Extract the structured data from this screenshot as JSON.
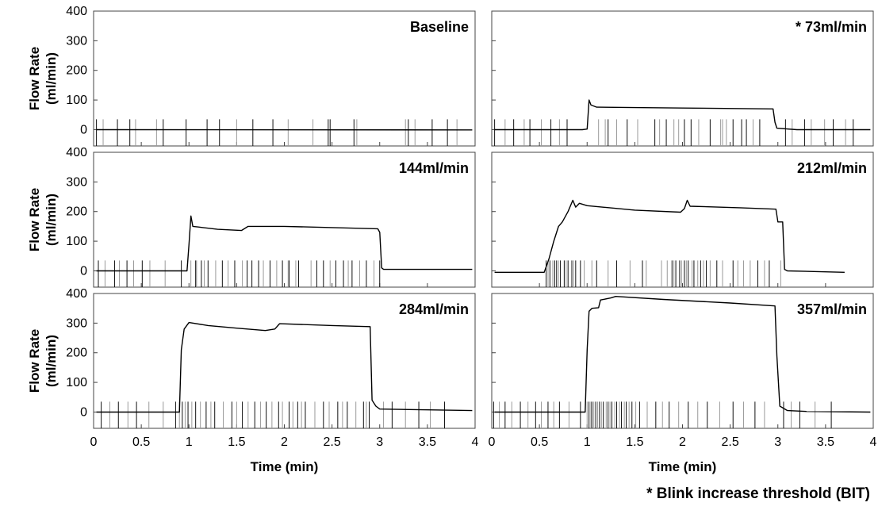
{
  "chart_data": {
    "type": "line",
    "layout": "3x2 grid of panels",
    "ylabel": "Flow Rate\n(ml/min)",
    "xlabel": "Time (min)",
    "ylim": [
      -55,
      400
    ],
    "yticks": [
      0,
      100,
      200,
      300,
      400
    ],
    "xlim": [
      0,
      4
    ],
    "xticks": [
      0,
      0.5,
      1,
      1.5,
      2,
      2.5,
      3,
      3.5,
      4
    ],
    "xtick_labels": [
      "0",
      "0.5",
      "1",
      "1.5",
      "2",
      "2.5",
      "3",
      "3.5",
      "4"
    ],
    "grid": false,
    "blink_marker_range": [
      -55,
      35
    ],
    "footnote": "* Blink increase threshold (BIT)",
    "panels": [
      {
        "title": "Baseline",
        "flow": [
          [
            0.03,
            0
          ],
          [
            3.97,
            -1
          ]
        ],
        "blinks_dark": [
          0.03,
          0.25,
          0.38,
          0.73,
          0.97,
          1.19,
          1.32,
          1.67,
          1.88,
          2.46,
          2.48,
          2.73,
          3.3,
          3.55,
          3.71
        ],
        "blinks_light": [
          0.1,
          0.44,
          0.66,
          1.5,
          2.04,
          2.3,
          2.76,
          3.27,
          3.37,
          3.81
        ]
      },
      {
        "title": "* 73ml/min",
        "flow": [
          [
            0.03,
            0
          ],
          [
            0.95,
            0
          ],
          [
            1.0,
            2
          ],
          [
            1.02,
            100
          ],
          [
            1.04,
            83
          ],
          [
            1.1,
            76
          ],
          [
            2.0,
            73
          ],
          [
            2.95,
            70
          ],
          [
            2.97,
            25
          ],
          [
            2.99,
            5
          ],
          [
            3.2,
            0
          ],
          [
            3.97,
            0
          ]
        ],
        "blinks_dark": [
          0.03,
          0.23,
          0.4,
          0.62,
          0.79,
          1.22,
          1.42,
          1.71,
          1.83,
          2.02,
          2.09,
          2.29,
          2.53,
          2.62,
          2.67,
          2.81,
          3.08,
          3.28,
          3.58,
          3.79
        ],
        "blinks_light": [
          0.14,
          0.34,
          0.52,
          0.71,
          1.12,
          1.19,
          1.31,
          1.53,
          1.76,
          1.91,
          1.96,
          2.17,
          2.4,
          2.42,
          2.46,
          2.74,
          3.15,
          3.35,
          3.49,
          3.71
        ]
      },
      {
        "title": "144ml/min",
        "flow": [
          [
            0.03,
            0
          ],
          [
            0.98,
            0
          ],
          [
            1.0,
            90
          ],
          [
            1.02,
            185
          ],
          [
            1.04,
            150
          ],
          [
            1.1,
            148
          ],
          [
            1.3,
            140
          ],
          [
            1.55,
            136
          ],
          [
            1.62,
            150
          ],
          [
            2.0,
            150
          ],
          [
            2.98,
            142
          ],
          [
            3.0,
            130
          ],
          [
            3.02,
            10
          ],
          [
            3.04,
            5
          ],
          [
            3.97,
            5
          ]
        ],
        "blinks_dark": [
          0.05,
          0.22,
          0.35,
          0.51,
          0.92,
          1.07,
          1.13,
          1.2,
          1.35,
          1.48,
          1.61,
          1.66,
          1.73,
          1.85,
          1.98,
          2.05,
          2.15,
          2.34,
          2.41,
          2.54,
          2.62,
          2.71,
          2.86,
          3.0
        ],
        "blinks_light": [
          0.12,
          0.27,
          0.42,
          0.59,
          0.75,
          1.02,
          1.08,
          1.16,
          1.28,
          1.41,
          1.56,
          1.78,
          1.92,
          2.04,
          2.12,
          2.28,
          2.48,
          2.67,
          2.79,
          2.94
        ]
      },
      {
        "title": "212ml/min",
        "flow": [
          [
            0.03,
            -5
          ],
          [
            0.55,
            -5
          ],
          [
            0.6,
            40
          ],
          [
            0.65,
            100
          ],
          [
            0.68,
            130
          ],
          [
            0.7,
            150
          ],
          [
            0.74,
            165
          ],
          [
            0.8,
            200
          ],
          [
            0.85,
            238
          ],
          [
            0.88,
            215
          ],
          [
            0.92,
            228
          ],
          [
            1.0,
            220
          ],
          [
            1.5,
            205
          ],
          [
            1.98,
            198
          ],
          [
            2.02,
            210
          ],
          [
            2.05,
            238
          ],
          [
            2.08,
            218
          ],
          [
            2.6,
            213
          ],
          [
            2.98,
            208
          ],
          [
            3.0,
            165
          ],
          [
            3.05,
            165
          ],
          [
            3.07,
            5
          ],
          [
            3.1,
            0
          ],
          [
            3.7,
            -5
          ]
        ],
        "blinks_dark": [
          0.57,
          0.61,
          0.66,
          0.68,
          0.72,
          0.76,
          0.8,
          0.84,
          0.88,
          0.93,
          1.1,
          1.31,
          1.58,
          1.89,
          1.93,
          1.97,
          2.02,
          2.06,
          2.12,
          2.19,
          2.25,
          2.36,
          2.53,
          2.79,
          2.91
        ],
        "blinks_light": [
          0.59,
          0.64,
          0.7,
          0.78,
          0.86,
          0.97,
          1.05,
          1.22,
          1.45,
          1.62,
          1.78,
          1.84,
          1.91,
          1.99,
          2.04,
          2.1,
          2.16,
          2.22,
          2.29,
          2.42,
          2.58,
          2.64,
          2.71,
          2.86,
          3.03
        ]
      },
      {
        "title": "284ml/min",
        "flow": [
          [
            0.03,
            0
          ],
          [
            0.9,
            0
          ],
          [
            0.92,
            210
          ],
          [
            0.95,
            280
          ],
          [
            1.0,
            302
          ],
          [
            1.2,
            292
          ],
          [
            1.5,
            283
          ],
          [
            1.8,
            275
          ],
          [
            1.9,
            280
          ],
          [
            1.95,
            298
          ],
          [
            2.5,
            292
          ],
          [
            2.9,
            288
          ],
          [
            2.92,
            40
          ],
          [
            2.96,
            20
          ],
          [
            3.0,
            10
          ],
          [
            3.97,
            5
          ]
        ],
        "blinks_dark": [
          0.08,
          0.26,
          0.45,
          0.86,
          0.93,
          0.99,
          1.07,
          1.18,
          1.27,
          1.45,
          1.56,
          1.69,
          1.81,
          1.94,
          2.05,
          2.14,
          2.22,
          2.41,
          2.56,
          2.66,
          2.83,
          2.89,
          3.13,
          3.41,
          3.68
        ],
        "blinks_light": [
          0.17,
          0.36,
          0.58,
          0.73,
          0.9,
          0.96,
          1.03,
          1.12,
          1.23,
          1.36,
          1.5,
          1.62,
          1.75,
          1.87,
          1.98,
          2.09,
          2.18,
          2.32,
          2.47,
          2.61,
          2.75,
          2.86,
          3.04,
          3.27,
          3.53
        ]
      },
      {
        "title": "357ml/min",
        "flow": [
          [
            0.03,
            0
          ],
          [
            0.98,
            0
          ],
          [
            1.0,
            210
          ],
          [
            1.02,
            340
          ],
          [
            1.05,
            350
          ],
          [
            1.12,
            352
          ],
          [
            1.14,
            378
          ],
          [
            1.25,
            385
          ],
          [
            1.3,
            390
          ],
          [
            1.8,
            380
          ],
          [
            2.5,
            368
          ],
          [
            2.97,
            358
          ],
          [
            2.99,
            190
          ],
          [
            3.02,
            20
          ],
          [
            3.1,
            5
          ],
          [
            3.3,
            2
          ],
          [
            3.97,
            0
          ]
        ],
        "blinks_dark": [
          0.02,
          0.14,
          0.3,
          0.46,
          0.59,
          0.71,
          0.93,
          1.02,
          1.05,
          1.09,
          1.13,
          1.17,
          1.22,
          1.26,
          1.31,
          1.36,
          1.41,
          1.47,
          1.55,
          1.72,
          1.86,
          2.06,
          2.26,
          2.53,
          2.76,
          3.06,
          3.23,
          3.56
        ],
        "blinks_light": [
          0.08,
          0.21,
          0.38,
          0.52,
          0.65,
          0.81,
          1.0,
          1.04,
          1.07,
          1.11,
          1.15,
          1.2,
          1.24,
          1.29,
          1.34,
          1.39,
          1.44,
          1.51,
          1.63,
          1.79,
          1.96,
          2.16,
          2.39,
          2.64,
          2.86,
          3.14,
          3.39
        ]
      }
    ]
  }
}
